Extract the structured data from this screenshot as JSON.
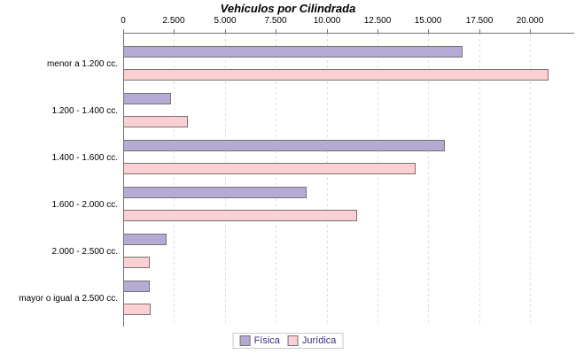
{
  "chart_data": {
    "type": "bar",
    "orientation": "horizontal",
    "title": "Vehículos por Cilindrada",
    "categories": [
      "menor a 1.200 cc.",
      "1.200 - 1.400 cc.",
      "1.400 - 1.600 cc.",
      "1.600 - 2.000 cc.",
      "2.000 - 2.500 cc.",
      "mayor o igual a 2.500 cc."
    ],
    "series": [
      {
        "name": "Física",
        "color": "#b4aad4",
        "border_color": "#737373",
        "values": [
          16700,
          2350,
          15800,
          9000,
          2150,
          1300
        ]
      },
      {
        "name": "Jurídica",
        "color": "#fccfd2",
        "border_color": "#737373",
        "values": [
          20900,
          3200,
          14400,
          11500,
          1300,
          1350
        ]
      }
    ],
    "x_ticks": [
      0,
      2500,
      5000,
      7500,
      10000,
      12500,
      15000,
      17500,
      20000
    ],
    "x_tick_labels": [
      "0",
      "2.500",
      "5.000",
      "7.500",
      "10.000",
      "12.500",
      "15.000",
      "17.500",
      "20.000"
    ],
    "xlim": [
      0,
      22250
    ],
    "axis_position": "top",
    "grid": "vertical-dashed",
    "legend_position": "bottom-center",
    "colors": {
      "axis": "#737373",
      "gridline": "#dedede",
      "text": "#000000",
      "legend_text": "#3d2f80",
      "legend_border": "#c9c9c9",
      "background": "#ffffff"
    }
  }
}
